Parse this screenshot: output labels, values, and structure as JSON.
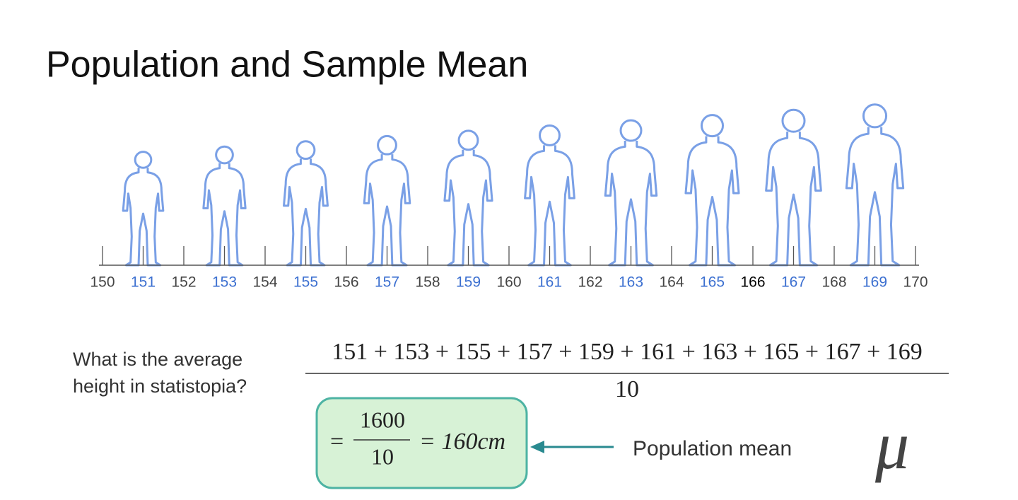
{
  "title": "Population and Sample Mean",
  "number_line": {
    "ticks": [
      150,
      151,
      152,
      153,
      154,
      155,
      156,
      157,
      158,
      159,
      160,
      161,
      162,
      163,
      164,
      165,
      166,
      167,
      168,
      169,
      170
    ]
  },
  "question": {
    "line1": "What is the average",
    "line2": "height in statistopia?"
  },
  "formula": {
    "numerator": "151 + 153 + 155 + 157 + 159 + 161 + 163 + 165 + 167 + 169",
    "denominator": "10"
  },
  "result_box": {
    "equals": "=",
    "numerator": "1600",
    "denominator": "10",
    "result": "= 160cm"
  },
  "annotation": {
    "label": "Population mean",
    "symbol": "μ"
  }
}
